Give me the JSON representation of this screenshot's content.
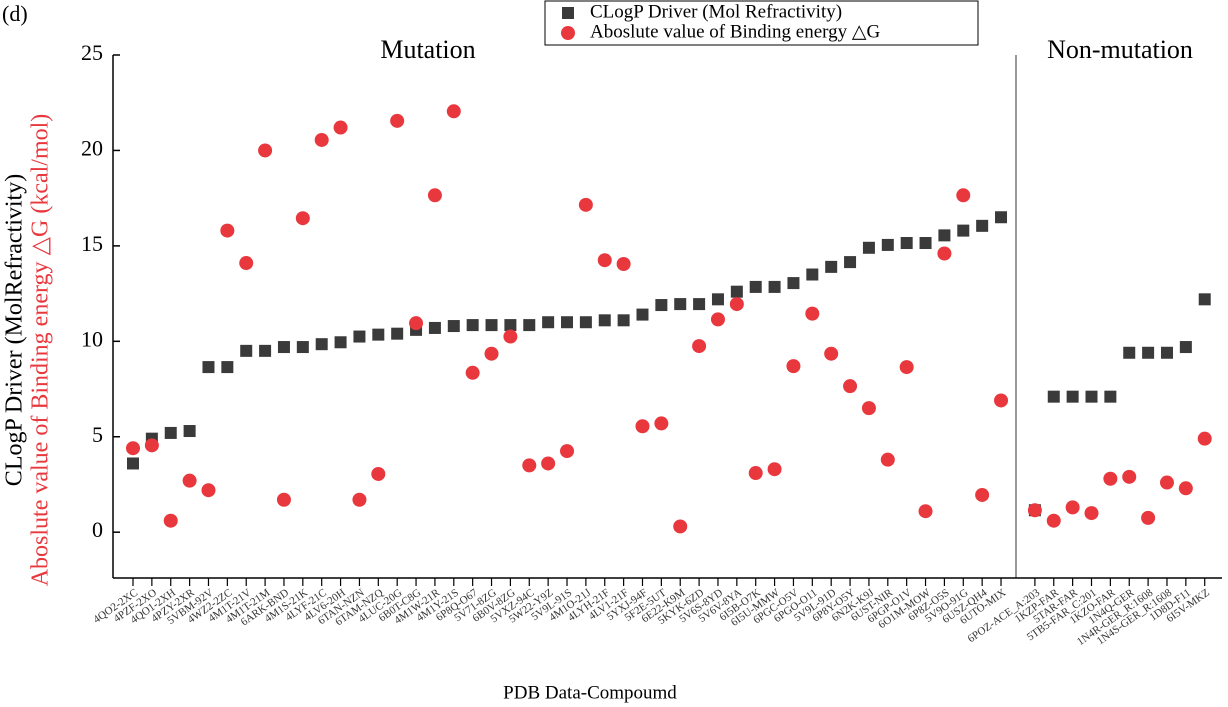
{
  "panel_label": "(d)",
  "chart_data": {
    "type": "scatter",
    "annotations": [
      "Mutation",
      "Non-mutation"
    ],
    "x_label": "PDB Data-Compoumd",
    "y_label": [
      "CLogP Driver (MolRefractivity)",
      "Aboslute value of Binding energy △G (kcal/mol)"
    ],
    "categories": [
      "4QO2-2XC",
      "4PZF-2XO",
      "4QO1-2XH",
      "4PZY-2XR",
      "5VBM-92V",
      "4WZ2-2ZC",
      "4M1T-21V",
      "4M1T-21M",
      "6ARK-BND",
      "4M1S-21K",
      "4LYF-21C",
      "4LV6-20H",
      "6TAN-NZN",
      "6TAM-NZQ",
      "4LUC-20G",
      "6B0T-C8G",
      "4M1W-21R",
      "4M1Y-21S",
      "6P8Q-O67",
      "5V71-8ZG",
      "6B0V-8ZG",
      "5VXZ-94C",
      "5W22-Y9Z",
      "5V9L-91S",
      "4M1O-21J",
      "4LYH-21F",
      "4LV1-21F",
      "5YXJ-94F",
      "5F2E-5UT",
      "6E22-K9M",
      "5KYK-6ZD",
      "5V6S-8YD",
      "5V6V-8YA",
      "6I5B-O7K",
      "6I5U-MMW",
      "6PGC-O5V",
      "6PGO-O11",
      "5V9L-91D",
      "6P8Y-O5Y",
      "6N2K-K9J",
      "6UST-NIR",
      "6PGP-O1V",
      "6O1M-MOW",
      "6P8Z-O5S",
      "5V9O-91G",
      "6USZ-QH4",
      "6UTO-MIX",
      "6POZ-ACE_A:203",
      "1KZP-FAR",
      "5TAR-FAR",
      "5TB5-FAR_C:201",
      "1KZO-FAR",
      "1N4Q-GER",
      "1N4R-GER_R:1608",
      "1N4S-GER_R:1608",
      "1D8D-F11",
      "6I5V-MKZ"
    ],
    "series": [
      {
        "name": "CLogP Driver (Mol Refractivity)",
        "color": "#3a3a3a",
        "marker": "square",
        "values": [
          3.6,
          4.9,
          5.2,
          5.3,
          8.65,
          8.65,
          9.5,
          9.5,
          9.7,
          9.7,
          9.85,
          9.95,
          10.25,
          10.35,
          10.4,
          10.6,
          10.7,
          10.8,
          10.85,
          10.85,
          10.85,
          10.85,
          11.0,
          11.0,
          11.0,
          11.1,
          11.1,
          11.4,
          11.9,
          11.95,
          11.95,
          12.2,
          12.6,
          12.85,
          12.85,
          13.05,
          13.5,
          13.9,
          14.15,
          14.9,
          15.05,
          15.15,
          15.15,
          15.55,
          15.8,
          16.05,
          16.5,
          1.15,
          7.1,
          7.1,
          7.1,
          7.1,
          9.4,
          9.4,
          9.4,
          9.7,
          12.2
        ]
      },
      {
        "name": "Aboslute value of Binding energy △G",
        "color": "#e8383d",
        "marker": "circle",
        "values": [
          4.4,
          4.55,
          0.6,
          2.7,
          2.2,
          15.8,
          14.1,
          20.0,
          1.7,
          16.45,
          20.55,
          21.2,
          1.7,
          3.05,
          21.55,
          10.95,
          17.65,
          22.05,
          8.35,
          9.35,
          10.25,
          3.5,
          3.6,
          4.25,
          17.15,
          14.25,
          14.05,
          5.55,
          5.7,
          0.3,
          9.75,
          11.15,
          11.95,
          3.1,
          3.3,
          8.7,
          11.45,
          9.35,
          7.65,
          6.5,
          3.8,
          8.65,
          1.1,
          14.6,
          17.65,
          1.95,
          6.9,
          1.15,
          0.6,
          1.3,
          1.0,
          2.8,
          2.9,
          0.75,
          2.6,
          2.3,
          4.9
        ]
      }
    ],
    "ylim": [
      -2.4,
      25
    ],
    "yticks": [
      0,
      5,
      10,
      15,
      20,
      25
    ]
  }
}
